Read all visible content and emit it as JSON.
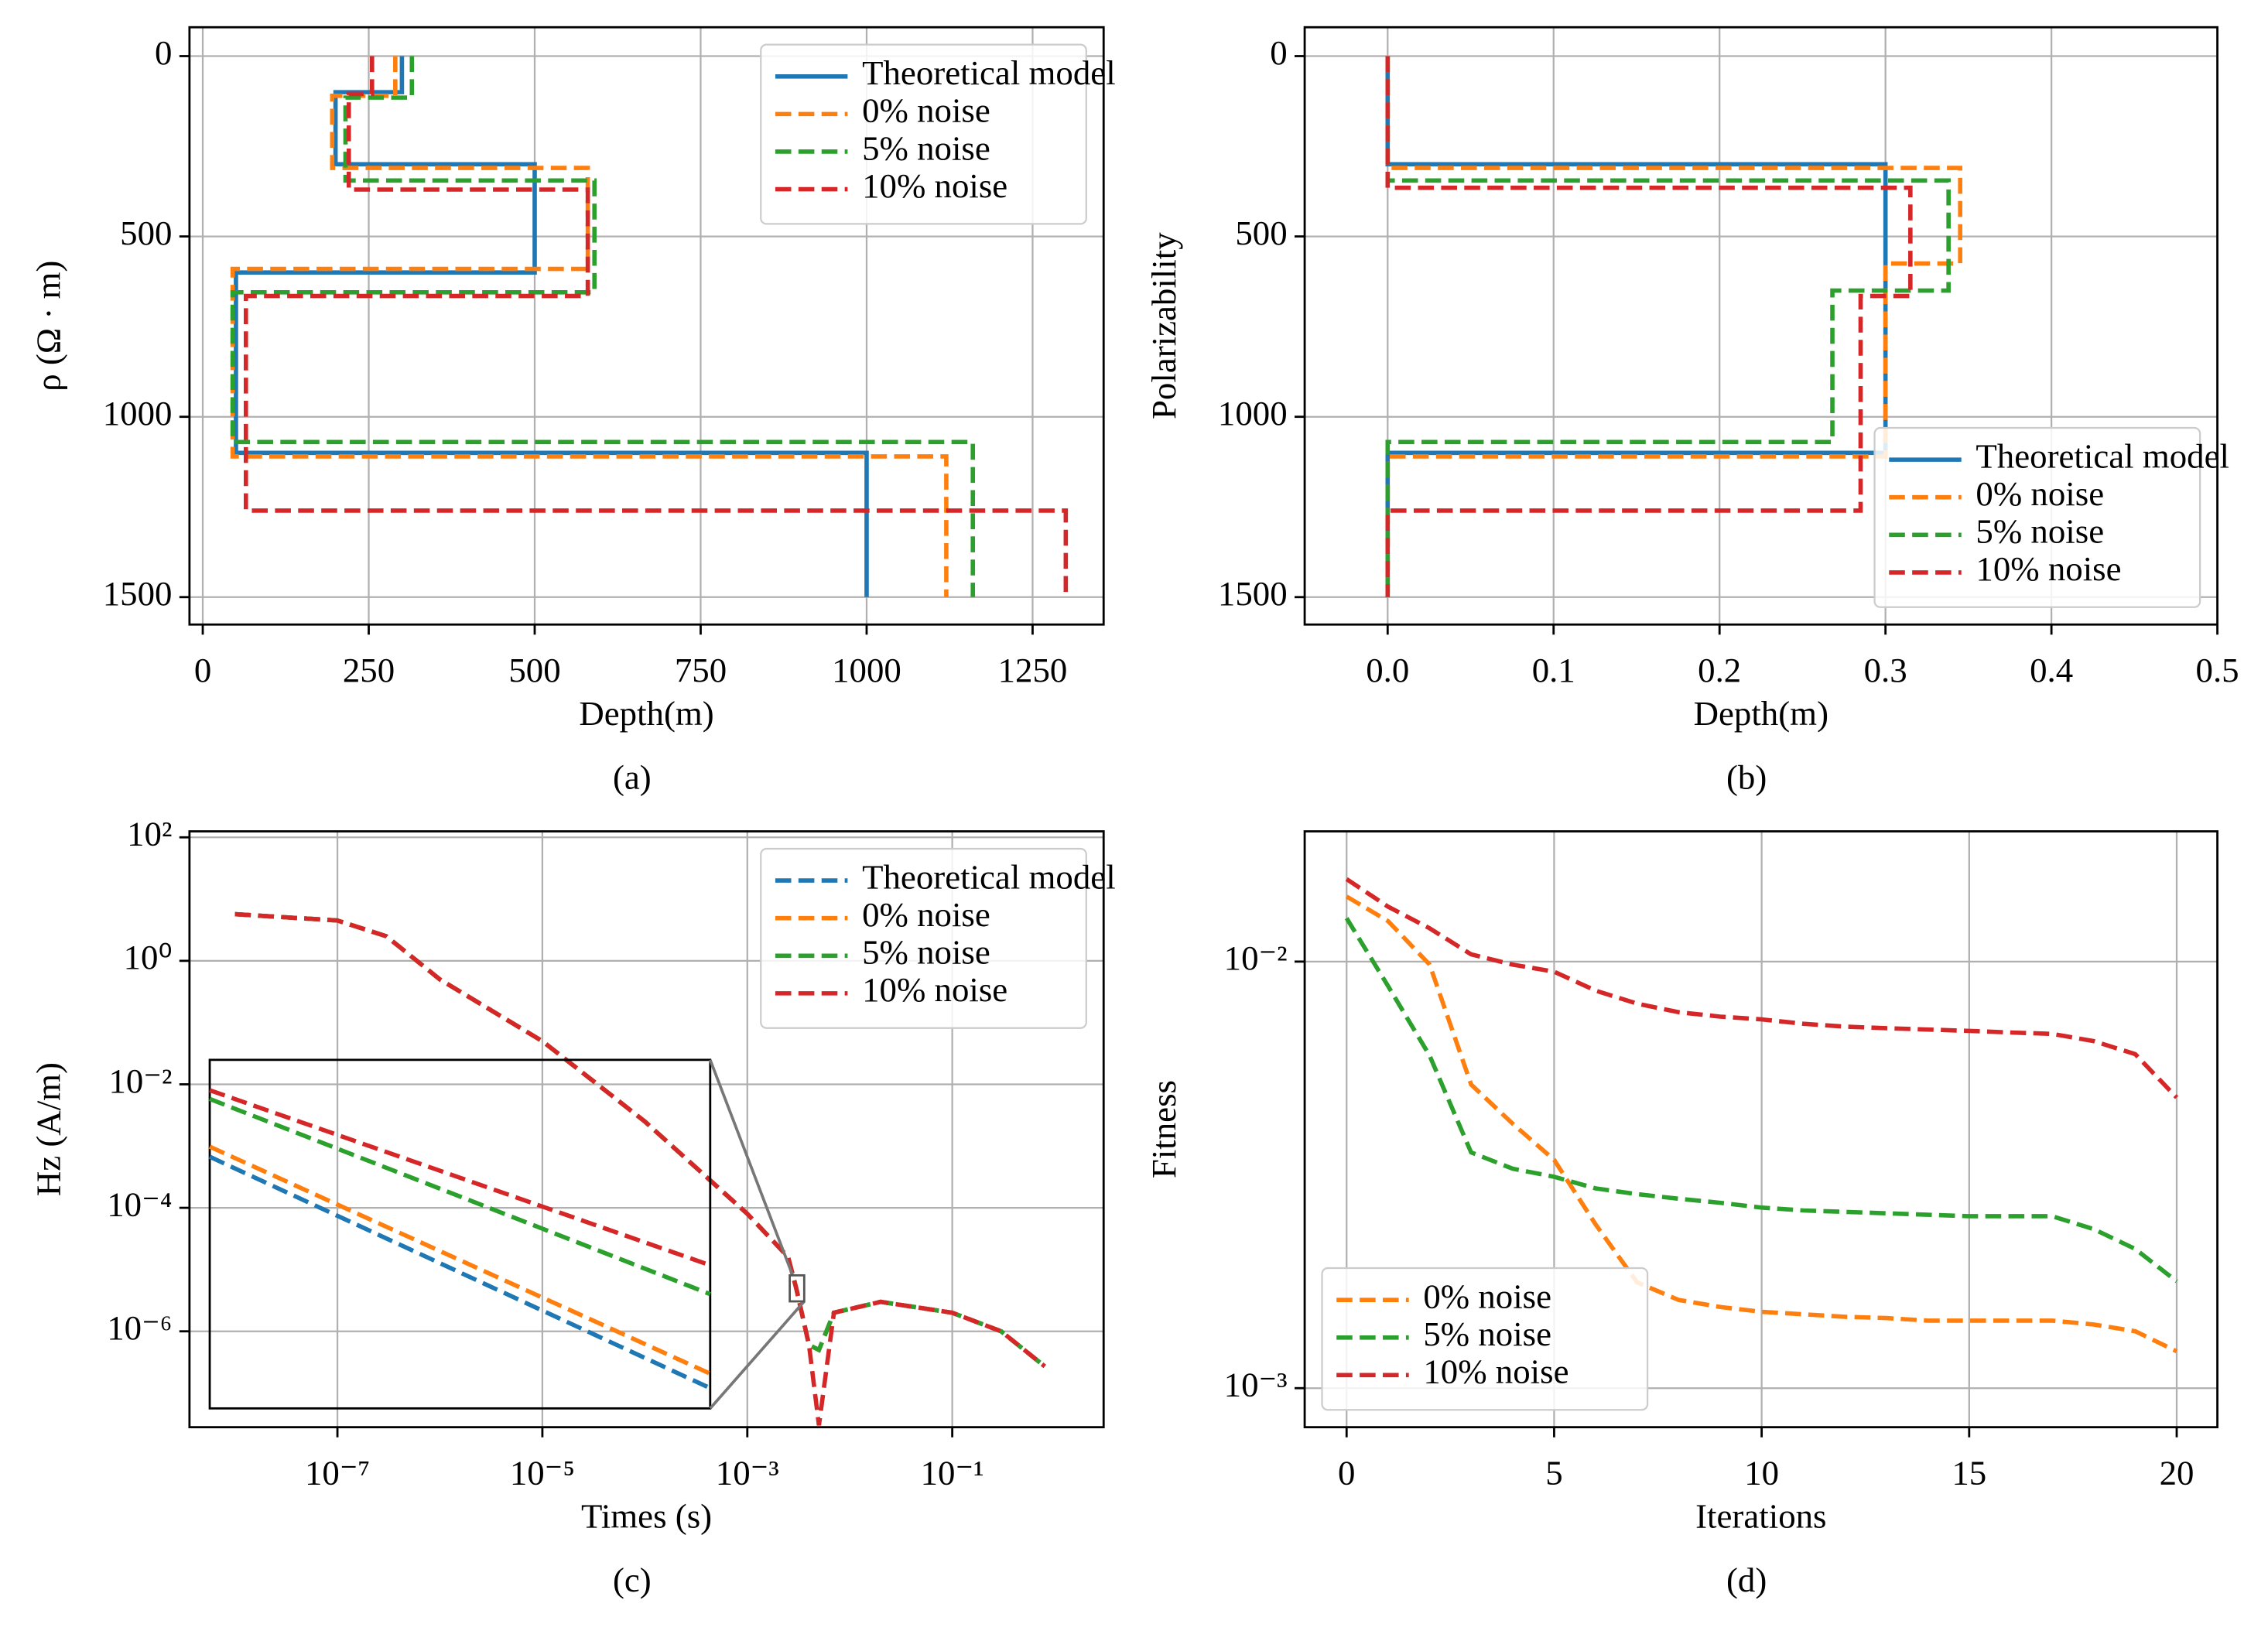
{
  "chart_data": [
    {
      "type": "line",
      "caption": "(a)",
      "xlabel": "Depth(m)",
      "ylabel": "ρ (Ω · m)",
      "xlim": [
        -20,
        1357
      ],
      "ylim": [
        1576,
        -80
      ],
      "xticks": [
        0,
        250,
        500,
        750,
        1000,
        1250
      ],
      "yticks": [
        0,
        500,
        1000,
        1500
      ],
      "grid": true,
      "legend": "upper right",
      "series": [
        {
          "name": "Theoretical model",
          "color": "#1f77b4",
          "linestyle": "solid",
          "x": [
            300,
            300,
            200,
            200,
            500,
            500,
            50,
            50,
            1000,
            1000
          ],
          "values": [
            0,
            100,
            100,
            300,
            300,
            600,
            600,
            1100,
            1100,
            1500
          ]
        },
        {
          "name": "0% noise",
          "color": "#ff7f0e",
          "linestyle": "dashed",
          "x": [
            290,
            290,
            195,
            195,
            580,
            580,
            45,
            45,
            1120,
            1120
          ],
          "values": [
            0,
            110,
            110,
            310,
            310,
            590,
            590,
            1110,
            1110,
            1500
          ]
        },
        {
          "name": "5% noise",
          "color": "#2ca02c",
          "linestyle": "dashed",
          "x": [
            315,
            315,
            215,
            215,
            590,
            590,
            45,
            45,
            1160,
            1160
          ],
          "values": [
            0,
            115,
            115,
            345,
            345,
            655,
            655,
            1070,
            1070,
            1500
          ]
        },
        {
          "name": "10% noise",
          "color": "#d62728",
          "linestyle": "dashed",
          "x": [
            255,
            255,
            220,
            220,
            580,
            580,
            65,
            65,
            1300,
            1300
          ],
          "values": [
            0,
            105,
            105,
            370,
            370,
            665,
            665,
            1260,
            1260,
            1500
          ]
        }
      ]
    },
    {
      "type": "line",
      "caption": "(b)",
      "xlabel": "Depth(m)",
      "ylabel": "Polarizability",
      "xlim": [
        -0.05,
        0.5
      ],
      "ylim": [
        1576,
        -80
      ],
      "xticks": [
        {
          "value": 0,
          "label": "0.0"
        },
        0.1,
        0.2,
        0.3,
        0.4,
        0.5
      ],
      "yticks": [
        0,
        500,
        1000,
        1500
      ],
      "grid": true,
      "legend": "lower right",
      "series": [
        {
          "name": "Theoretical model",
          "color": "#1f77b4",
          "linestyle": "solid",
          "x": [
            0,
            0,
            0.3,
            0.3,
            0,
            0
          ],
          "values": [
            0,
            300,
            300,
            1100,
            1100,
            1500
          ]
        },
        {
          "name": "0% noise",
          "color": "#ff7f0e",
          "linestyle": "dashed",
          "x": [
            0,
            0,
            0.345,
            0.345,
            0.3,
            0.3,
            0,
            0
          ],
          "values": [
            0,
            310,
            310,
            575,
            575,
            1110,
            1110,
            1500
          ]
        },
        {
          "name": "5% noise",
          "color": "#2ca02c",
          "linestyle": "dashed",
          "x": [
            0,
            0,
            0.338,
            0.338,
            0.268,
            0.268,
            0,
            0
          ],
          "values": [
            0,
            345,
            345,
            650,
            650,
            1070,
            1070,
            1500
          ]
        },
        {
          "name": "10% noise",
          "color": "#d62728",
          "linestyle": "dashed",
          "x": [
            0,
            0,
            0.315,
            0.315,
            0.285,
            0.285,
            0,
            0
          ],
          "values": [
            0,
            365,
            365,
            665,
            665,
            1260,
            1260,
            1500
          ]
        }
      ]
    },
    {
      "type": "line",
      "caption": "(c)",
      "xlabel": "Times (s)",
      "ylabel": "Hz (A/m)",
      "xlog": true,
      "ylog": true,
      "xlim": [
        3.6e-09,
        3.0
      ],
      "ylim": [
        2.8e-08,
        125
      ],
      "xticks": [
        {
          "value": 1e-07,
          "label": "10⁻⁷"
        },
        {
          "value": 1e-05,
          "label": "10⁻⁵"
        },
        {
          "value": 0.001,
          "label": "10⁻³"
        },
        {
          "value": 0.1,
          "label": "10⁻¹"
        }
      ],
      "yticks": [
        {
          "value": 100,
          "label": "10²"
        },
        {
          "value": 1,
          "label": "10⁰"
        },
        {
          "value": 0.01,
          "label": "10⁻²"
        },
        {
          "value": 0.0001,
          "label": "10⁻⁴"
        },
        {
          "value": 1e-06,
          "label": "10⁻⁶"
        }
      ],
      "grid": true,
      "legend": "upper right",
      "x": [
        1e-08,
        1e-07,
        3e-07,
        1e-06,
        1e-05,
        0.0001,
        0.001,
        0.0025,
        0.003,
        0.004,
        0.005,
        0.007,
        0.02,
        0.1,
        0.3,
        0.8
      ],
      "series": [
        {
          "name": "Theoretical model",
          "color": "#1f77b4",
          "linestyle": "dashed",
          "values": [
            5.7,
            4.5,
            2.5,
            0.5,
            0.05,
            0.0025,
            8e-05,
            1.6e-05,
            5e-06,
            6e-07,
            5e-07,
            2e-06,
            3e-06,
            2e-06,
            1e-06,
            2.7e-07
          ]
        },
        {
          "name": "0% noise",
          "color": "#ff7f0e",
          "linestyle": "dashed",
          "values": [
            5.7,
            4.5,
            2.5,
            0.5,
            0.05,
            0.0025,
            8e-05,
            1.6e-05,
            5e-06,
            6e-07,
            5e-07,
            2e-06,
            3e-06,
            2e-06,
            1e-06,
            2.7e-07
          ]
        },
        {
          "name": "5% noise",
          "color": "#2ca02c",
          "linestyle": "dashed",
          "values": [
            5.7,
            4.5,
            2.5,
            0.5,
            0.05,
            0.0025,
            8e-05,
            1.6e-05,
            5e-06,
            6e-07,
            5e-07,
            2e-06,
            3e-06,
            2e-06,
            1e-06,
            2.7e-07
          ]
        },
        {
          "name": "10% noise",
          "color": "#d62728",
          "linestyle": "dashed",
          "values": [
            5.7,
            4.5,
            2.5,
            0.5,
            0.05,
            0.0025,
            8e-05,
            1.6e-05,
            5e-06,
            6e-07,
            3e-08,
            2e-06,
            3e-06,
            2e-06,
            1e-06,
            2.7e-07
          ]
        }
      ]
    },
    {
      "type": "line",
      "caption": "(d)",
      "xlabel": "Iterations",
      "ylabel": "Fitness",
      "ylog": true,
      "xlim": [
        -1.01,
        20.98
      ],
      "ylim": [
        0.00081,
        0.0202
      ],
      "xticks": [
        0,
        5,
        10,
        15,
        20
      ],
      "yticks": [
        {
          "value": 0.01,
          "label": "10⁻²"
        },
        {
          "value": 0.001,
          "label": "10⁻³"
        }
      ],
      "grid": true,
      "legend": "lower left",
      "x": [
        0,
        1,
        2,
        3,
        4,
        5,
        6,
        7,
        8,
        9,
        10,
        11,
        12,
        13,
        14,
        15,
        16,
        17,
        18,
        19,
        20
      ],
      "series": [
        {
          "name": "0% noise",
          "color": "#ff7f0e",
          "linestyle": "dashed",
          "values": [
            0.01421,
            0.01244,
            0.00984,
            0.00515,
            0.00417,
            0.00343,
            0.00242,
            0.00177,
            0.00161,
            0.00155,
            0.00151,
            0.00149,
            0.00147,
            0.00146,
            0.00144,
            0.00144,
            0.00144,
            0.00144,
            0.00141,
            0.00136,
            0.00122
          ]
        },
        {
          "name": "5% noise",
          "color": "#2ca02c",
          "linestyle": "dashed",
          "values": [
            0.01264,
            0.00876,
            0.00602,
            0.00357,
            0.00327,
            0.00313,
            0.00294,
            0.00285,
            0.00278,
            0.00272,
            0.00265,
            0.00261,
            0.00259,
            0.00257,
            0.00255,
            0.00253,
            0.00253,
            0.00253,
            0.00236,
            0.00212,
            0.00178
          ]
        },
        {
          "name": "10% noise",
          "color": "#d62728",
          "linestyle": "dashed",
          "values": [
            0.01561,
            0.01345,
            0.01197,
            0.0104,
            0.00984,
            0.00947,
            0.00855,
            0.00797,
            0.00761,
            0.00743,
            0.00732,
            0.00715,
            0.00704,
            0.00698,
            0.00693,
            0.00688,
            0.00682,
            0.00677,
            0.00651,
            0.00607,
            0.0048
          ]
        }
      ]
    }
  ]
}
